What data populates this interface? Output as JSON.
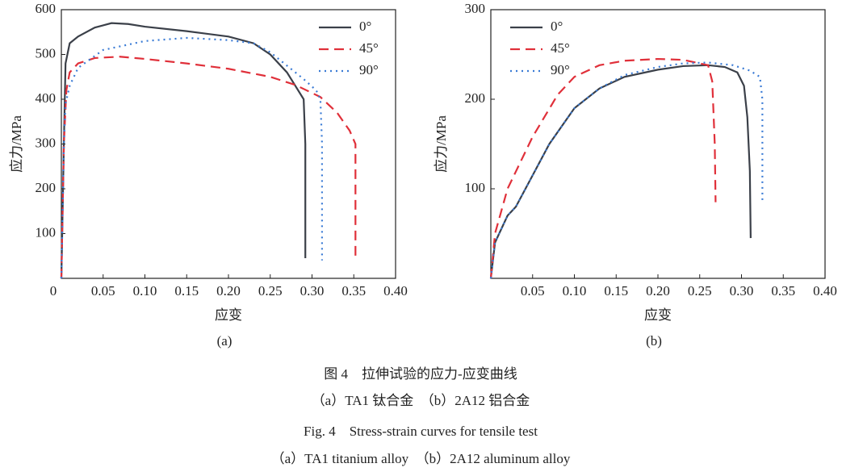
{
  "chart_data": [
    {
      "type": "line",
      "subtitle": "(a)",
      "xlabel": "应变",
      "ylabel": "应力/MPa",
      "xlim": [
        0,
        0.4
      ],
      "ylim": [
        0,
        600
      ],
      "legend": "upper right",
      "xticks": [
        0,
        0.05,
        {
          "value": 0.1,
          "label": "0.10"
        },
        0.15,
        {
          "value": 0.2,
          "label": "0.20"
        },
        0.25,
        {
          "value": 0.3,
          "label": "0.30"
        },
        0.35,
        {
          "value": 0.4,
          "label": "0.40"
        }
      ],
      "yticks": [
        100,
        200,
        300,
        400,
        500,
        600
      ],
      "series": [
        {
          "name": "0°",
          "color": "#3b4049",
          "dash": "solid",
          "x": [
            0,
            0.003,
            0.005,
            0.01,
            0.02,
            0.04,
            0.06,
            0.08,
            0.1,
            0.15,
            0.2,
            0.23,
            0.25,
            0.27,
            0.28,
            0.29,
            0.292,
            0.292
          ],
          "values": [
            0,
            300,
            480,
            525,
            540,
            560,
            570,
            568,
            562,
            552,
            540,
            525,
            500,
            460,
            430,
            400,
            300,
            45
          ]
        },
        {
          "name": "45°",
          "color": "#e0303a",
          "dash": "dashed",
          "x": [
            0,
            0.003,
            0.006,
            0.01,
            0.02,
            0.04,
            0.07,
            0.1,
            0.15,
            0.2,
            0.25,
            0.28,
            0.31,
            0.33,
            0.345,
            0.352,
            0.352
          ],
          "values": [
            0,
            300,
            420,
            460,
            480,
            492,
            495,
            490,
            480,
            468,
            450,
            432,
            405,
            370,
            330,
            300,
            40
          ]
        },
        {
          "name": "90°",
          "color": "#3a7bd5",
          "dash": "dotted",
          "x": [
            0,
            0.003,
            0.005,
            0.01,
            0.02,
            0.05,
            0.1,
            0.15,
            0.2,
            0.23,
            0.25,
            0.27,
            0.29,
            0.305,
            0.31,
            0.312,
            0.312
          ],
          "values": [
            0,
            300,
            390,
            430,
            470,
            510,
            530,
            537,
            532,
            525,
            505,
            475,
            445,
            420,
            400,
            300,
            40
          ]
        }
      ]
    },
    {
      "type": "line",
      "subtitle": "(b)",
      "xlabel": "应变",
      "ylabel": "应力/MPa",
      "xlim": [
        0,
        0.4
      ],
      "ylim": [
        0,
        300
      ],
      "legend": "upper left",
      "xticks": [
        0.05,
        {
          "value": 0.1,
          "label": "0.10"
        },
        0.15,
        {
          "value": 0.2,
          "label": "0.20"
        },
        0.25,
        {
          "value": 0.3,
          "label": "0.30"
        },
        0.35,
        {
          "value": 0.4,
          "label": "0.40"
        }
      ],
      "yticks": [
        100,
        200,
        300
      ],
      "series": [
        {
          "name": "0°",
          "color": "#3b4049",
          "dash": "solid",
          "x": [
            0,
            0.005,
            0.02,
            0.03,
            0.05,
            0.07,
            0.1,
            0.13,
            0.16,
            0.2,
            0.23,
            0.26,
            0.28,
            0.295,
            0.303,
            0.307,
            0.31,
            0.311
          ],
          "values": [
            0,
            40,
            70,
            80,
            115,
            150,
            190,
            212,
            225,
            233,
            237,
            238,
            236,
            230,
            215,
            180,
            120,
            45
          ]
        },
        {
          "name": "45°",
          "color": "#e0303a",
          "dash": "dashed",
          "x": [
            0,
            0.005,
            0.02,
            0.05,
            0.08,
            0.1,
            0.13,
            0.16,
            0.2,
            0.23,
            0.26,
            0.265,
            0.268,
            0.269
          ],
          "values": [
            0,
            50,
            100,
            158,
            205,
            225,
            238,
            243,
            245,
            244,
            238,
            220,
            150,
            85
          ]
        },
        {
          "name": "90°",
          "color": "#3a7bd5",
          "dash": "dotted",
          "x": [
            0,
            0.005,
            0.02,
            0.03,
            0.05,
            0.07,
            0.1,
            0.13,
            0.16,
            0.2,
            0.23,
            0.26,
            0.29,
            0.31,
            0.322,
            0.325,
            0.325
          ],
          "values": [
            0,
            40,
            70,
            80,
            115,
            150,
            190,
            212,
            227,
            236,
            240,
            241,
            238,
            232,
            225,
            200,
            85
          ]
        }
      ]
    }
  ],
  "caption": {
    "cn_title": "图 4　拉伸试验的应力-应变曲线",
    "cn_parts": "（a）TA1 钛合金　（b）2A12 铝合金",
    "en_title": "Fig. 4　Stress-strain curves for tensile test",
    "en_parts": "（a）TA1 titanium alloy　（b）2A12 aluminum alloy"
  }
}
